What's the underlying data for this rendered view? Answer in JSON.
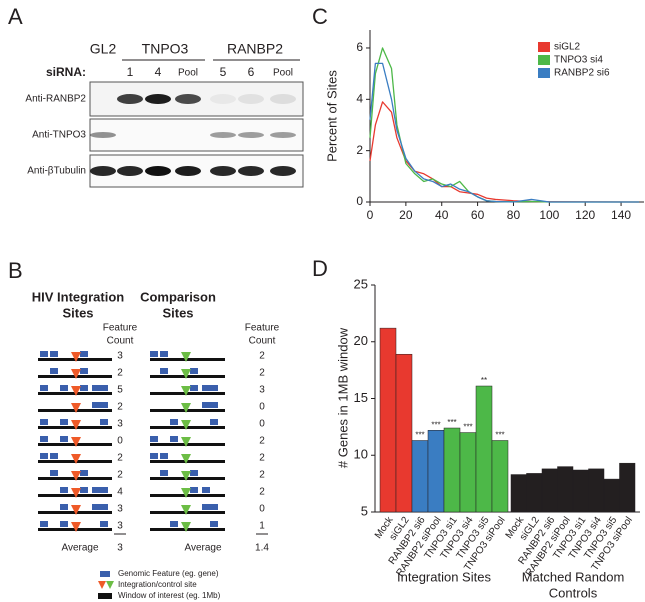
{
  "panel_a": {
    "letter": "A",
    "groups": [
      "GL2",
      "TNPO3",
      "RANBP2"
    ],
    "sirna_label": "siRNA:",
    "lanes": [
      "1",
      "4",
      "Pool",
      "5",
      "6",
      "Pool"
    ],
    "antibodies": [
      "Anti-RANBP2",
      "Anti-TNPO3",
      "Anti-βTubulin"
    ]
  },
  "panel_b": {
    "letter": "B",
    "left_title": [
      "HIV Integration",
      "Sites"
    ],
    "right_title": [
      "Comparison",
      "Sites"
    ],
    "count_header": [
      "Feature",
      "Count"
    ],
    "left_counts": [
      3,
      2,
      5,
      2,
      3,
      0,
      2,
      2,
      4,
      3,
      3
    ],
    "right_counts": [
      2,
      2,
      3,
      0,
      0,
      2,
      2,
      2,
      2,
      0,
      1
    ],
    "average_label": "Average",
    "left_average": 3,
    "right_average": 1.4,
    "legend": [
      "Genomic Feature (eg. gene)",
      "Integration/control site",
      "Window of interest (eg. 1Mb)"
    ]
  },
  "chart_data": [
    {
      "type": "line",
      "letter": "C",
      "y_label": "Percent of Sites",
      "x": [
        0,
        3,
        7,
        12,
        15,
        20,
        25,
        30,
        35,
        40,
        45,
        50,
        55,
        60,
        65,
        70,
        80,
        90,
        100,
        150
      ],
      "series": [
        {
          "name": "siGL2",
          "color": "#e8392f",
          "values": [
            1.6,
            3.0,
            3.9,
            3.5,
            2.5,
            1.6,
            1.2,
            1.1,
            0.9,
            0.6,
            0.6,
            0.4,
            0.35,
            0.3,
            0.15,
            0.1,
            0.05,
            0.02,
            0.01,
            0
          ]
        },
        {
          "name": "TNPO3 si4",
          "color": "#4db848",
          "values": [
            2.5,
            5.0,
            6.0,
            5.2,
            3.0,
            1.5,
            1.1,
            0.8,
            0.9,
            0.7,
            0.6,
            0.8,
            0.4,
            0.2,
            0.05,
            0.02,
            0.01,
            0.02,
            0,
            0
          ]
        },
        {
          "name": "RANBP2 si6",
          "color": "#3a7dc2",
          "values": [
            3.2,
            5.4,
            5.4,
            4.0,
            2.8,
            1.7,
            1.2,
            0.9,
            0.8,
            0.6,
            0.7,
            0.5,
            0.4,
            0.2,
            0.05,
            0.02,
            0,
            0.1,
            0,
            0
          ]
        }
      ],
      "xlim": [
        0,
        150
      ],
      "xticks": [
        0,
        20,
        40,
        60,
        80,
        100,
        120,
        140
      ],
      "ylim": [
        0,
        6.7
      ],
      "yticks": [
        0,
        2,
        4,
        6
      ],
      "legend": "upper right"
    },
    {
      "type": "bar",
      "letter": "D",
      "y_label": "# Genes in 1MB window",
      "ylim": [
        5,
        25
      ],
      "yticks": [
        5,
        10,
        15,
        20,
        25
      ],
      "groups": [
        {
          "label": [
            "Integration Sites"
          ],
          "categories": [
            "Mock",
            "siGL2",
            "RANBP2 si6",
            "RANBP2 siPool",
            "TNPO3 si1",
            "TNPO3 si4",
            "TNPO3 si5",
            "TNPO3 siPool"
          ],
          "values": [
            21.2,
            18.9,
            11.3,
            12.2,
            12.4,
            12.0,
            16.1,
            11.3
          ],
          "colors": [
            "#e8392f",
            "#e8392f",
            "#3a7dc2",
            "#3a7dc2",
            "#4db848",
            "#4db848",
            "#4db848",
            "#4db848"
          ],
          "annotations": [
            null,
            null,
            "***",
            "***",
            "***",
            "***",
            "**",
            "***"
          ]
        },
        {
          "label": [
            "Matched Random",
            "Controls"
          ],
          "categories": [
            "Mock",
            "siGL2",
            "RANBP2 si6",
            "RANBP2 siPool",
            "TNPO3 si1",
            "TNPO3 si4",
            "TNPO3 si5",
            "TNPO3 siPool"
          ],
          "values": [
            8.3,
            8.4,
            8.8,
            9.0,
            8.7,
            8.8,
            7.9,
            9.3
          ],
          "colors": [
            "#231f20",
            "#231f20",
            "#231f20",
            "#231f20",
            "#231f20",
            "#231f20",
            "#231f20",
            "#231f20"
          ],
          "annotations": [
            null,
            null,
            null,
            null,
            null,
            null,
            null,
            null
          ]
        }
      ]
    }
  ]
}
